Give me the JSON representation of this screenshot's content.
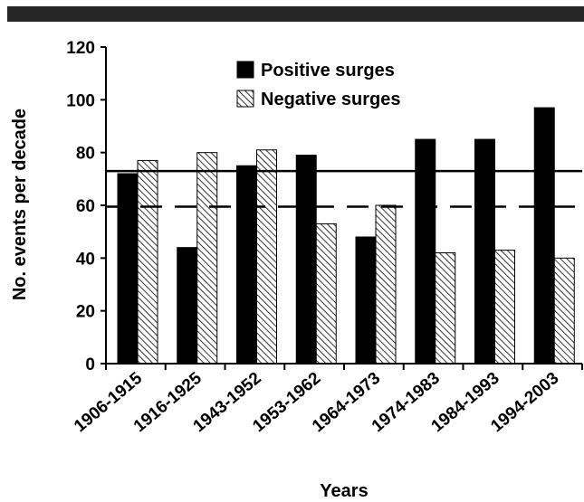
{
  "chart_data": {
    "type": "bar",
    "title": "",
    "xlabel": "Years",
    "ylabel": "No. events per decade",
    "categories": [
      "1906-1915",
      "1916-1925",
      "1943-1952",
      "1953-1962",
      "1964-1973",
      "1974-1983",
      "1984-1993",
      "1994-2003"
    ],
    "series": [
      {
        "name": "Positive surges",
        "values": [
          72,
          44,
          75,
          79,
          48,
          85,
          85,
          97
        ],
        "fill": "solid",
        "color": "#000000"
      },
      {
        "name": "Negative surges",
        "values": [
          77,
          80,
          81,
          53,
          60,
          42,
          43,
          40
        ],
        "fill": "hatched",
        "color": "#000000"
      }
    ],
    "yticks": [
      0,
      20,
      40,
      60,
      80,
      100,
      120
    ],
    "ylim": [
      0,
      120
    ],
    "reference_lines": [
      {
        "value": 73,
        "style": "solid"
      },
      {
        "value": 59.5,
        "style": "dashed"
      }
    ],
    "grid": false,
    "legend_position": "top"
  }
}
